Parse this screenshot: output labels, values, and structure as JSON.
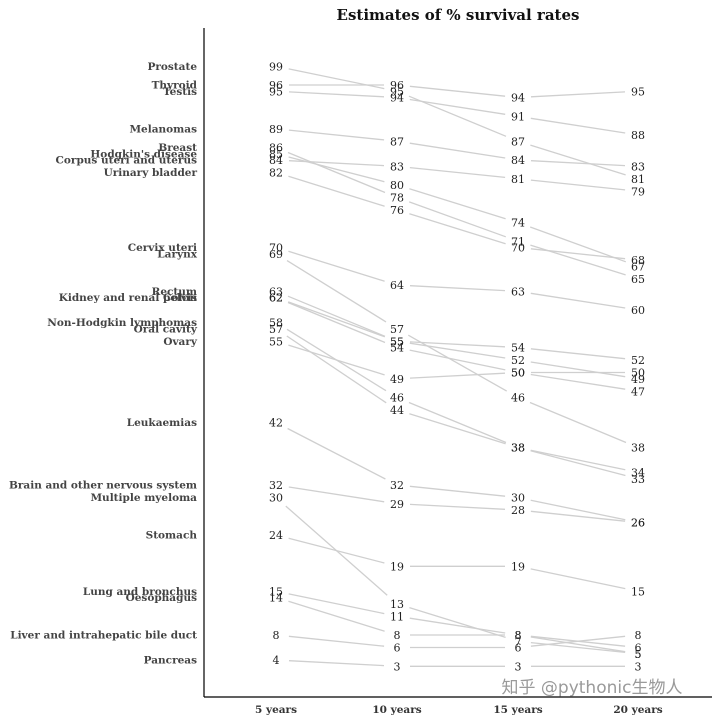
{
  "watermark": "知乎 @pythonic生物人",
  "chart_data": {
    "type": "slope",
    "title": "Estimates of % survival rates",
    "categories": [
      "5 years",
      "10 years",
      "15 years",
      "20 years"
    ],
    "series": [
      {
        "name": "Prostate",
        "values": [
          99,
          95,
          87,
          81
        ]
      },
      {
        "name": "Thyroid",
        "values": [
          96,
          96,
          94,
          95
        ]
      },
      {
        "name": "Testis",
        "values": [
          95,
          94,
          91,
          88
        ]
      },
      {
        "name": "Melanomas",
        "values": [
          89,
          87,
          84,
          83
        ]
      },
      {
        "name": "Breast",
        "values": [
          86,
          78,
          71,
          65
        ]
      },
      {
        "name": "Hodgkin's disease",
        "values": [
          85,
          80,
          74,
          67
        ]
      },
      {
        "name": "Corpus uteri and uterus",
        "values": [
          84,
          83,
          81,
          79
        ]
      },
      {
        "name": "Urinary bladder",
        "values": [
          82,
          76,
          70,
          68
        ]
      },
      {
        "name": "Cervix uteri",
        "values": [
          70,
          64,
          63,
          60
        ]
      },
      {
        "name": "Larynx",
        "values": [
          69,
          57,
          46,
          38
        ]
      },
      {
        "name": "Rectum",
        "values": [
          63,
          55,
          52,
          49
        ]
      },
      {
        "name": "Kidney and renal pelvis",
        "values": [
          62,
          54,
          50,
          47
        ]
      },
      {
        "name": "Colon",
        "values": [
          62,
          55,
          54,
          52
        ]
      },
      {
        "name": "Non-Hodgkin lymphomas",
        "values": [
          58,
          46,
          38,
          34
        ]
      },
      {
        "name": "Oral cavity",
        "values": [
          57,
          44,
          38,
          33
        ]
      },
      {
        "name": "Ovary",
        "values": [
          55,
          49,
          50,
          50
        ]
      },
      {
        "name": "Leukaemias",
        "values": [
          42,
          32,
          30,
          26
        ]
      },
      {
        "name": "Brain and other nervous system",
        "values": [
          32,
          29,
          28,
          26
        ]
      },
      {
        "name": "Multiple myeloma",
        "values": [
          30,
          13,
          7,
          5
        ]
      },
      {
        "name": "Stomach",
        "values": [
          24,
          19,
          19,
          15
        ]
      },
      {
        "name": "Lung and bronchus",
        "values": [
          15,
          11,
          8,
          6
        ]
      },
      {
        "name": "Oesophagus",
        "values": [
          14,
          8,
          8,
          5
        ]
      },
      {
        "name": "Liver and intrahepatic bile duct",
        "values": [
          8,
          6,
          6,
          8
        ]
      },
      {
        "name": "Pancreas",
        "values": [
          4,
          3,
          3,
          3
        ]
      }
    ]
  }
}
